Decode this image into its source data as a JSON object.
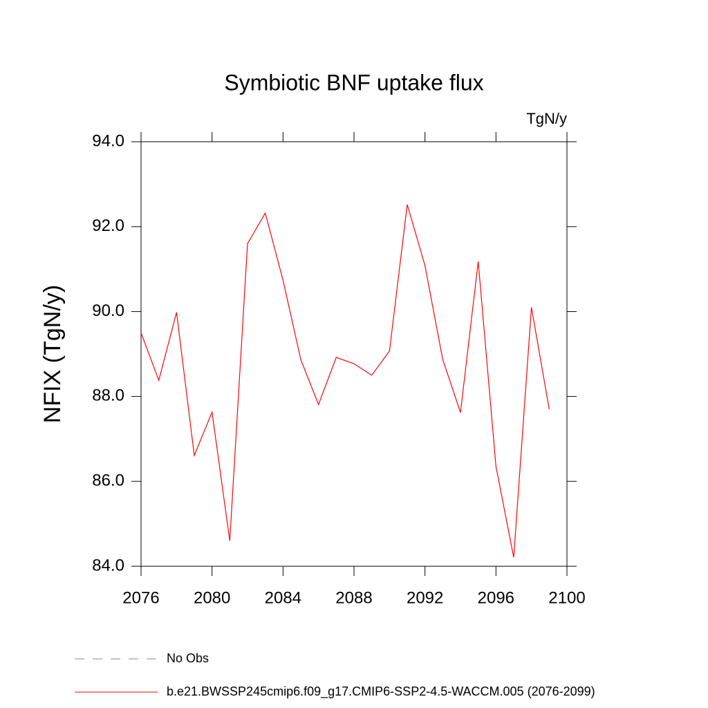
{
  "chart_data": {
    "type": "line",
    "title": "Symbiotic BNF uptake flux",
    "units": "TgN/y",
    "y_label": "NFIX  (TgN/y)",
    "x": [
      2076,
      2077,
      2078,
      2079,
      2080,
      2081,
      2082,
      2083,
      2084,
      2085,
      2086,
      2087,
      2088,
      2089,
      2090,
      2091,
      2092,
      2093,
      2094,
      2095,
      2096,
      2097,
      2098,
      2099
    ],
    "series": [
      {
        "name": "b.e21.BWSSP245cmip6.f09_g17.CMIP6-SSP2-4.5-WACCM.005 (2076-2099)",
        "color": "#ff0000",
        "values": [
          89.5,
          88.38,
          89.98,
          86.61,
          87.63,
          84.6,
          91.6,
          92.32,
          90.74,
          88.87,
          87.81,
          88.92,
          88.77,
          88.5,
          89.07,
          92.52,
          91.08,
          88.87,
          87.62,
          91.18,
          86.35,
          84.21,
          90.1,
          87.7
        ]
      }
    ],
    "reference": {
      "name": "No Obs",
      "color": "#8080c8",
      "dash": "dashed"
    },
    "xlim": [
      2076,
      2100
    ],
    "xticks": [
      2076,
      2080,
      2084,
      2088,
      2092,
      2096,
      2100
    ],
    "ylim": [
      84,
      94
    ],
    "yticks": [
      {
        "value": 84,
        "label": "84.0"
      },
      {
        "value": 86,
        "label": "86.0"
      },
      {
        "value": 88,
        "label": "88.0"
      },
      {
        "value": 90,
        "label": "90.0"
      },
      {
        "value": 92,
        "label": "92.0"
      },
      {
        "value": 94,
        "label": "94.0"
      }
    ],
    "grid": false
  }
}
